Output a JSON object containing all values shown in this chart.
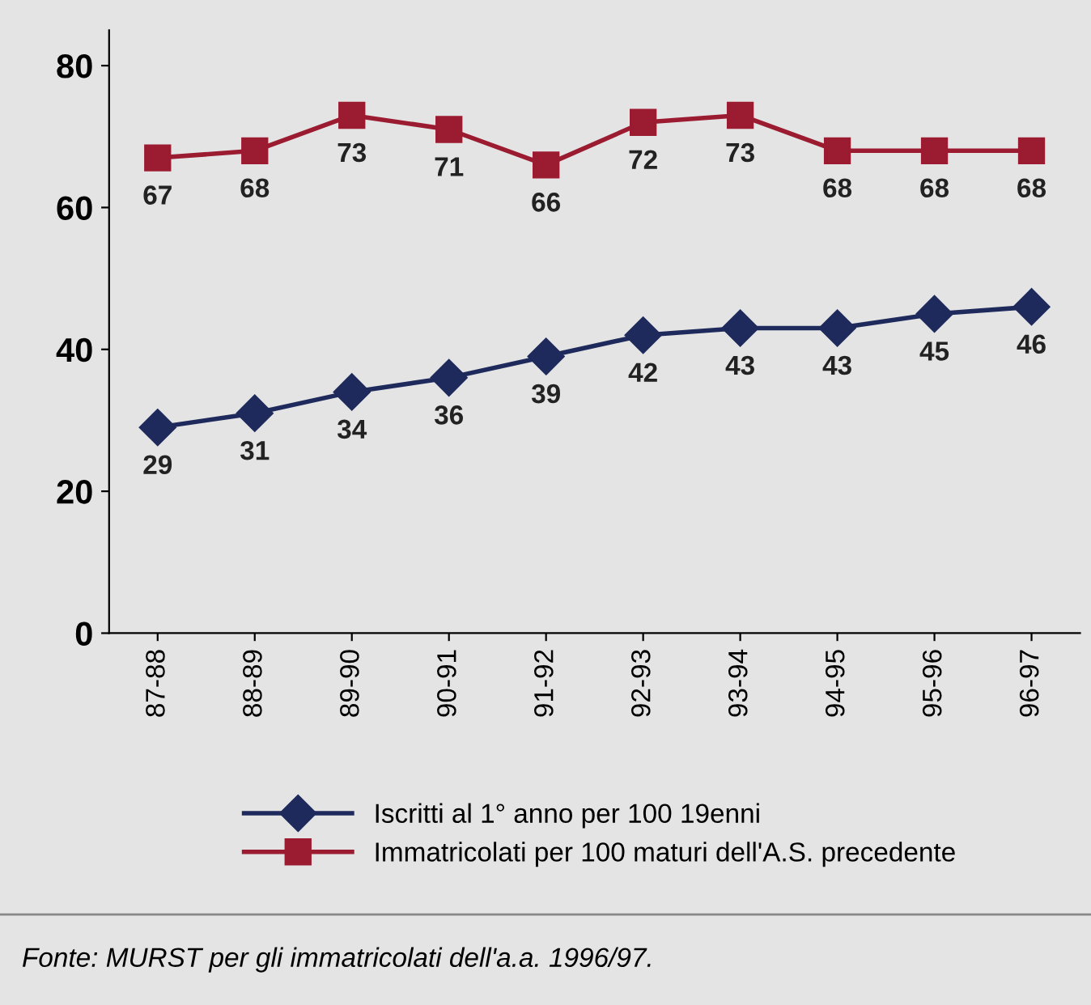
{
  "chart_data": {
    "type": "line",
    "categories": [
      "87-88",
      "88-89",
      "89-90",
      "90-91",
      "91-92",
      "92-93",
      "93-94",
      "94-95",
      "95-96",
      "96-97"
    ],
    "series": [
      {
        "name": "Iscritti al 1° anno per 100 19enni",
        "color": "#1f2a5c",
        "marker": "diamond",
        "values": [
          29,
          31,
          34,
          36,
          39,
          42,
          43,
          43,
          45,
          46
        ]
      },
      {
        "name": "Immatricolati per 100 maturi dell'A.S. precedente",
        "color": "#9b1b30",
        "marker": "square",
        "values": [
          67,
          68,
          73,
          71,
          66,
          72,
          73,
          68,
          68,
          68
        ]
      }
    ],
    "ylim": [
      0,
      85
    ],
    "yticks": [
      0,
      20,
      40,
      60,
      80
    ],
    "data_labels": true,
    "grid": false,
    "legend": "bottom",
    "line_style": "solid",
    "annotations": [
      "Fonte: MURST per gli immatricolati dell'a.a. 1996/97."
    ]
  }
}
